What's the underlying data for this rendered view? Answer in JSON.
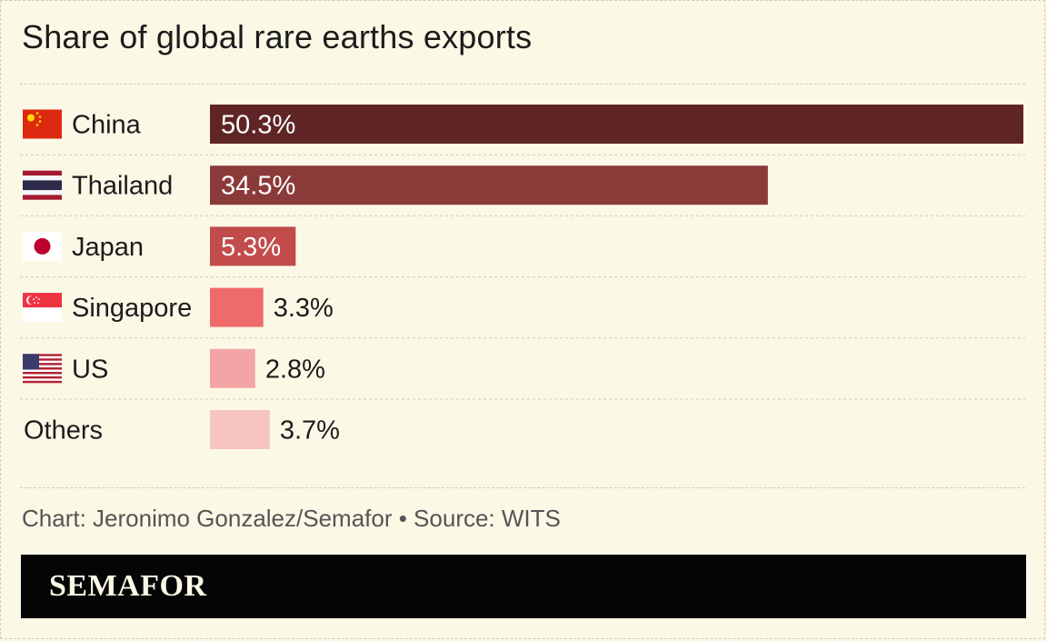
{
  "chart_data": {
    "type": "bar",
    "orientation": "horizontal",
    "title": "Share of global rare earths exports",
    "categories": [
      "China",
      "Thailand",
      "Japan",
      "Singapore",
      "US",
      "Others"
    ],
    "values": [
      50.3,
      34.5,
      5.3,
      3.3,
      2.8,
      3.7
    ],
    "value_labels": [
      "50.3%",
      "34.5%",
      "5.3%",
      "3.3%",
      "2.8%",
      "3.7%"
    ],
    "flags": [
      "china-flag-icon",
      "thailand-flag-icon",
      "japan-flag-icon",
      "singapore-flag-icon",
      "us-flag-icon",
      ""
    ],
    "colors": [
      "#5e2524",
      "#8b3a3a",
      "#c24b4b",
      "#ef6b6b",
      "#f3a5a5",
      "#f7c3c3"
    ],
    "xlim": [
      0,
      50.3
    ],
    "grid": false,
    "legend": "none"
  },
  "credit": "Chart: Jeronimo Gonzalez/Semafor • Source: WITS",
  "footer": {
    "logo": "SEMAFOR"
  }
}
